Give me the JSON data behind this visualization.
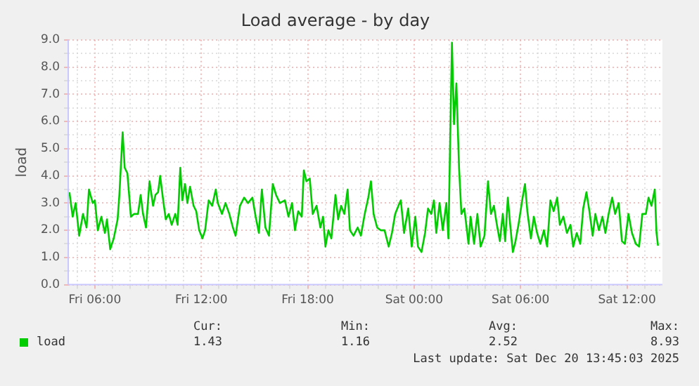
{
  "chart_data": {
    "type": "line",
    "title": "Load average - by day",
    "ylabel": "load",
    "xlim": [
      "2025-12-19T04:30",
      "2025-12-20T14:00"
    ],
    "xticks": [
      {
        "value": "2025-12-19T05:00",
        "label": null
      },
      {
        "value": "2025-12-19T06:00",
        "label": "Fri 06:00"
      },
      {
        "value": "2025-12-19T07:00",
        "label": null
      },
      {
        "value": "2025-12-19T08:00",
        "label": null
      },
      {
        "value": "2025-12-19T09:00",
        "label": null
      },
      {
        "value": "2025-12-19T10:00",
        "label": null
      },
      {
        "value": "2025-12-19T11:00",
        "label": null
      },
      {
        "value": "2025-12-19T12:00",
        "label": "Fri 12:00"
      },
      {
        "value": "2025-12-19T13:00",
        "label": null
      },
      {
        "value": "2025-12-19T14:00",
        "label": null
      },
      {
        "value": "2025-12-19T15:00",
        "label": null
      },
      {
        "value": "2025-12-19T16:00",
        "label": null
      },
      {
        "value": "2025-12-19T17:00",
        "label": null
      },
      {
        "value": "2025-12-19T18:00",
        "label": "Fri 18:00"
      },
      {
        "value": "2025-12-19T19:00",
        "label": null
      },
      {
        "value": "2025-12-19T20:00",
        "label": null
      },
      {
        "value": "2025-12-19T21:00",
        "label": null
      },
      {
        "value": "2025-12-19T22:00",
        "label": null
      },
      {
        "value": "2025-12-19T23:00",
        "label": null
      },
      {
        "value": "2025-12-20T00:00",
        "label": "Sat 00:00"
      },
      {
        "value": "2025-12-20T01:00",
        "label": null
      },
      {
        "value": "2025-12-20T02:00",
        "label": null
      },
      {
        "value": "2025-12-20T03:00",
        "label": null
      },
      {
        "value": "2025-12-20T04:00",
        "label": null
      },
      {
        "value": "2025-12-20T05:00",
        "label": null
      },
      {
        "value": "2025-12-20T06:00",
        "label": "Sat 06:00"
      },
      {
        "value": "2025-12-20T07:00",
        "label": null
      },
      {
        "value": "2025-12-20T08:00",
        "label": null
      },
      {
        "value": "2025-12-20T09:00",
        "label": null
      },
      {
        "value": "2025-12-20T10:00",
        "label": null
      },
      {
        "value": "2025-12-20T11:00",
        "label": null
      },
      {
        "value": "2025-12-20T12:00",
        "label": "Sat 12:00"
      },
      {
        "value": "2025-12-20T13:00",
        "label": null
      }
    ],
    "ylim": [
      0,
      9
    ],
    "yticks": [
      {
        "value": 0,
        "label": "0.0"
      },
      {
        "value": 0.5,
        "label": null
      },
      {
        "value": 1,
        "label": "1.0"
      },
      {
        "value": 1.5,
        "label": null
      },
      {
        "value": 2,
        "label": "2.0"
      },
      {
        "value": 2.5,
        "label": null
      },
      {
        "value": 3,
        "label": "3.0"
      },
      {
        "value": 3.5,
        "label": null
      },
      {
        "value": 4,
        "label": "4.0"
      },
      {
        "value": 4.5,
        "label": null
      },
      {
        "value": 5,
        "label": "5.0"
      },
      {
        "value": 5.5,
        "label": null
      },
      {
        "value": 6,
        "label": "6.0"
      },
      {
        "value": 6.5,
        "label": null
      },
      {
        "value": 7,
        "label": "7.0"
      },
      {
        "value": 7.5,
        "label": null
      },
      {
        "value": 8,
        "label": "8.0"
      },
      {
        "value": 8.5,
        "label": null
      },
      {
        "value": 9,
        "label": "9.0"
      }
    ],
    "grid": true,
    "legend": "bottom",
    "marker": "none",
    "line_style": "solid",
    "x": [
      "2025-12-19T04:34",
      "2025-12-19T04:45",
      "2025-12-19T04:55",
      "2025-12-19T05:07",
      "2025-12-19T05:20",
      "2025-12-19T05:32",
      "2025-12-19T05:40",
      "2025-12-19T05:53",
      "2025-12-19T06:00",
      "2025-12-19T06:10",
      "2025-12-19T06:22",
      "2025-12-19T06:34",
      "2025-12-19T06:41",
      "2025-12-19T06:52",
      "2025-12-19T07:04",
      "2025-12-19T07:17",
      "2025-12-19T07:23",
      "2025-12-19T07:34",
      "2025-12-19T07:41",
      "2025-12-19T07:50",
      "2025-12-19T08:02",
      "2025-12-19T08:13",
      "2025-12-19T08:26",
      "2025-12-19T08:35",
      "2025-12-19T08:43",
      "2025-12-19T08:53",
      "2025-12-19T09:05",
      "2025-12-19T09:17",
      "2025-12-19T09:25",
      "2025-12-19T09:34",
      "2025-12-19T09:41",
      "2025-12-19T09:50",
      "2025-12-19T10:00",
      "2025-12-19T10:10",
      "2025-12-19T10:20",
      "2025-12-19T10:32",
      "2025-12-19T10:40",
      "2025-12-19T10:49",
      "2025-12-19T10:56",
      "2025-12-19T11:05",
      "2025-12-19T11:13",
      "2025-12-19T11:22",
      "2025-12-19T11:34",
      "2025-12-19T11:43",
      "2025-12-19T11:53",
      "2025-12-19T12:04",
      "2025-12-19T12:13",
      "2025-12-19T12:25",
      "2025-12-19T12:37",
      "2025-12-19T12:49",
      "2025-12-19T12:56",
      "2025-12-19T13:10",
      "2025-12-19T13:22",
      "2025-12-19T13:35",
      "2025-12-19T13:47",
      "2025-12-19T13:56",
      "2025-12-19T14:11",
      "2025-12-19T14:25",
      "2025-12-19T14:38",
      "2025-12-19T14:53",
      "2025-12-19T15:04",
      "2025-12-19T15:15",
      "2025-12-19T15:25",
      "2025-12-19T15:37",
      "2025-12-19T15:49",
      "2025-12-19T16:02",
      "2025-12-19T16:13",
      "2025-12-19T16:26",
      "2025-12-19T16:43",
      "2025-12-19T16:55",
      "2025-12-19T17:07",
      "2025-12-19T17:17",
      "2025-12-19T17:28",
      "2025-12-19T17:40",
      "2025-12-19T17:47",
      "2025-12-19T17:56",
      "2025-12-19T18:07",
      "2025-12-19T18:17",
      "2025-12-19T18:30",
      "2025-12-19T18:43",
      "2025-12-19T18:52",
      "2025-12-19T19:00",
      "2025-12-19T19:10",
      "2025-12-19T19:20",
      "2025-12-19T19:34",
      "2025-12-19T19:43",
      "2025-12-19T19:53",
      "2025-12-19T20:04",
      "2025-12-19T20:15",
      "2025-12-19T20:23",
      "2025-12-19T20:35",
      "2025-12-19T20:49",
      "2025-12-19T21:00",
      "2025-12-19T21:13",
      "2025-12-19T21:25",
      "2025-12-19T21:34",
      "2025-12-19T21:43",
      "2025-12-19T21:55",
      "2025-12-19T22:07",
      "2025-12-19T22:20",
      "2025-12-19T22:34",
      "2025-12-19T22:45",
      "2025-12-19T22:56",
      "2025-12-19T23:07",
      "2025-12-19T23:15",
      "2025-12-19T23:26",
      "2025-12-19T23:40",
      "2025-12-19T23:52",
      "2025-12-20T00:04",
      "2025-12-20T00:13",
      "2025-12-20T00:25",
      "2025-12-20T00:37",
      "2025-12-20T00:47",
      "2025-12-20T00:58",
      "2025-12-20T01:07",
      "2025-12-20T01:15",
      "2025-12-20T01:26",
      "2025-12-20T01:37",
      "2025-12-20T01:49",
      "2025-12-20T01:56",
      "2025-12-20T02:08",
      "2025-12-20T02:15",
      "2025-12-20T02:23",
      "2025-12-20T02:32",
      "2025-12-20T02:40",
      "2025-12-20T02:50",
      "2025-12-20T03:04",
      "2025-12-20T03:11",
      "2025-12-20T03:23",
      "2025-12-20T03:34",
      "2025-12-20T03:45",
      "2025-12-20T03:58",
      "2025-12-20T04:10",
      "2025-12-20T04:20",
      "2025-12-20T04:30",
      "2025-12-20T04:40",
      "2025-12-20T04:50",
      "2025-12-20T05:00",
      "2025-12-20T05:08",
      "2025-12-20T05:17",
      "2025-12-20T05:25",
      "2025-12-20T05:34",
      "2025-12-20T05:43",
      "2025-12-20T05:53",
      "2025-12-20T06:07",
      "2025-12-20T06:15",
      "2025-12-20T06:23",
      "2025-12-20T06:35",
      "2025-12-20T06:45",
      "2025-12-20T06:56",
      "2025-12-20T07:07",
      "2025-12-20T07:19",
      "2025-12-20T07:30",
      "2025-12-20T07:41",
      "2025-12-20T07:52",
      "2025-12-20T08:04",
      "2025-12-20T08:13",
      "2025-12-20T08:25",
      "2025-12-20T08:37",
      "2025-12-20T08:49",
      "2025-12-20T08:58",
      "2025-12-20T09:10",
      "2025-12-20T09:22",
      "2025-12-20T09:32",
      "2025-12-20T09:43",
      "2025-12-20T09:53",
      "2025-12-20T10:04",
      "2025-12-20T10:13",
      "2025-12-20T10:25",
      "2025-12-20T10:37",
      "2025-12-20T10:47",
      "2025-12-20T10:58",
      "2025-12-20T11:10",
      "2025-12-20T11:20",
      "2025-12-20T11:32",
      "2025-12-20T11:43",
      "2025-12-20T11:53",
      "2025-12-20T12:05",
      "2025-12-20T12:17",
      "2025-12-20T12:30",
      "2025-12-20T12:41",
      "2025-12-20T12:52",
      "2025-12-20T13:04",
      "2025-12-20T13:13",
      "2025-12-20T13:23",
      "2025-12-20T13:34",
      "2025-12-20T13:40",
      "2025-12-20T13:45"
    ],
    "series": [
      {
        "name": "load",
        "color": "#00cc00",
        "values": [
          3.4,
          2.5,
          3.0,
          1.8,
          2.6,
          2.1,
          3.5,
          3.0,
          3.1,
          2.0,
          2.5,
          1.9,
          2.4,
          1.3,
          1.7,
          2.4,
          3.3,
          5.6,
          4.3,
          4.1,
          2.5,
          2.6,
          2.6,
          3.3,
          2.6,
          2.1,
          3.8,
          2.9,
          3.3,
          3.4,
          4.0,
          3.2,
          2.4,
          2.6,
          2.2,
          2.6,
          2.2,
          4.3,
          3.1,
          3.7,
          3.0,
          3.6,
          2.9,
          2.7,
          2.0,
          1.7,
          2.0,
          3.1,
          2.9,
          3.5,
          3.0,
          2.6,
          3.0,
          2.6,
          2.1,
          1.8,
          2.9,
          3.2,
          3.0,
          3.2,
          2.5,
          1.9,
          3.5,
          2.1,
          1.8,
          3.7,
          3.3,
          3.0,
          3.1,
          2.5,
          3.0,
          2.0,
          2.7,
          2.5,
          4.2,
          3.8,
          3.9,
          2.6,
          2.9,
          2.1,
          2.5,
          1.4,
          2.0,
          1.7,
          3.3,
          2.4,
          2.9,
          2.6,
          3.5,
          2.0,
          1.8,
          2.1,
          1.8,
          2.6,
          3.2,
          3.8,
          2.6,
          2.1,
          2.0,
          2.0,
          1.4,
          1.9,
          2.6,
          2.9,
          3.1,
          1.9,
          2.8,
          1.4,
          2.5,
          1.4,
          1.2,
          1.9,
          2.8,
          2.6,
          3.1,
          1.9,
          3.0,
          2.0,
          3.0,
          1.7,
          8.9,
          5.9,
          7.4,
          4.3,
          2.6,
          2.8,
          1.5,
          2.5,
          1.5,
          2.6,
          1.4,
          1.8,
          3.8,
          2.6,
          2.9,
          2.2,
          1.6,
          2.6,
          1.6,
          3.2,
          2.2,
          1.2,
          1.6,
          2.2,
          3.2,
          3.7,
          2.7,
          1.7,
          2.5,
          1.9,
          1.5,
          2.0,
          1.4,
          3.1,
          2.7,
          3.2,
          2.2,
          2.5,
          1.9,
          2.2,
          1.4,
          1.9,
          1.5,
          2.8,
          3.4,
          2.7,
          1.8,
          2.6,
          2.0,
          2.5,
          1.9,
          2.6,
          3.2,
          2.6,
          3.0,
          1.6,
          1.5,
          2.6,
          1.9,
          1.5,
          1.4,
          2.6,
          2.6,
          3.2,
          2.9,
          3.5,
          1.9,
          1.43
        ]
      }
    ],
    "annotations": [
      "Cur:",
      "Min:",
      "Avg:",
      "Max:",
      "1.43",
      "1.16",
      "2.52",
      "8.93",
      "Last update: Sat Dec 20 13:45:03 2025"
    ]
  }
}
